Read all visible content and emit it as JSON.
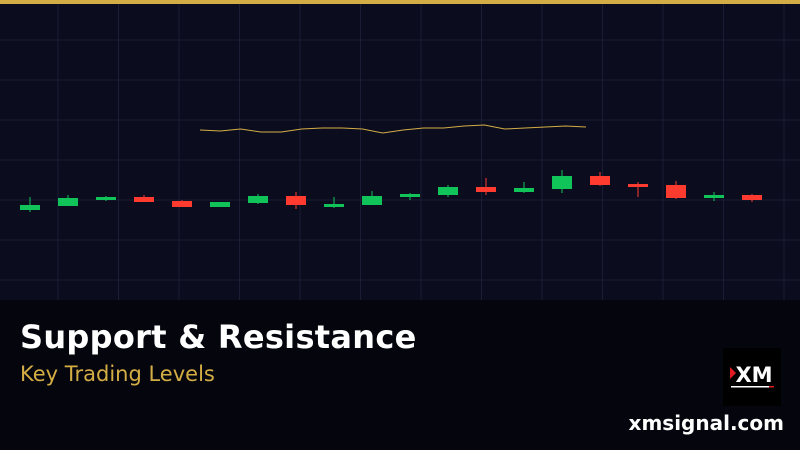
{
  "header": {
    "accent_color": "#d4ad45"
  },
  "banner": {
    "title": "Support & Resistance",
    "subtitle": "Key Trading Levels",
    "site": "xmsignal.com",
    "logo_text": "XM"
  },
  "chart_data": {
    "type": "candlestick",
    "title": "",
    "xlabel": "",
    "ylabel": "",
    "ylim": [
      0,
      296
    ],
    "grid": true,
    "colors": {
      "up": "#10c45a",
      "down": "#ff3b30",
      "line": "#d4ad45",
      "grid": "#1a1d33",
      "background": "#0b0d1f"
    },
    "candles": [
      {
        "o": 90,
        "h": 103,
        "l": 88,
        "c": 95
      },
      {
        "o": 94,
        "h": 105,
        "l": 94,
        "c": 102
      },
      {
        "o": 100,
        "h": 104,
        "l": 99,
        "c": 103
      },
      {
        "o": 103,
        "h": 105,
        "l": 98,
        "c": 98
      },
      {
        "o": 99,
        "h": 100,
        "l": 93,
        "c": 93
      },
      {
        "o": 93,
        "h": 98,
        "l": 93,
        "c": 98
      },
      {
        "o": 97,
        "h": 106,
        "l": 96,
        "c": 104
      },
      {
        "o": 104,
        "h": 108,
        "l": 91,
        "c": 95
      },
      {
        "o": 93,
        "h": 103,
        "l": 92,
        "c": 96
      },
      {
        "o": 95,
        "h": 109,
        "l": 95,
        "c": 104
      },
      {
        "o": 103,
        "h": 107,
        "l": 100,
        "c": 106
      },
      {
        "o": 105,
        "h": 115,
        "l": 103,
        "c": 113
      },
      {
        "o": 113,
        "h": 122,
        "l": 105,
        "c": 108
      },
      {
        "o": 108,
        "h": 118,
        "l": 107,
        "c": 112
      },
      {
        "o": 111,
        "h": 130,
        "l": 107,
        "c": 124
      },
      {
        "o": 124,
        "h": 128,
        "l": 114,
        "c": 115
      },
      {
        "o": 116,
        "h": 118,
        "l": 103,
        "c": 113
      },
      {
        "o": 115,
        "h": 119,
        "l": 101,
        "c": 102
      },
      {
        "o": 102,
        "h": 108,
        "l": 99,
        "c": 105
      },
      {
        "o": 105,
        "h": 106,
        "l": 98,
        "c": 100
      }
    ],
    "line": [
      170,
      169,
      171,
      168,
      168,
      171,
      172,
      172,
      171,
      167,
      170,
      172,
      172,
      174,
      175,
      171,
      172,
      173,
      174,
      173
    ]
  }
}
